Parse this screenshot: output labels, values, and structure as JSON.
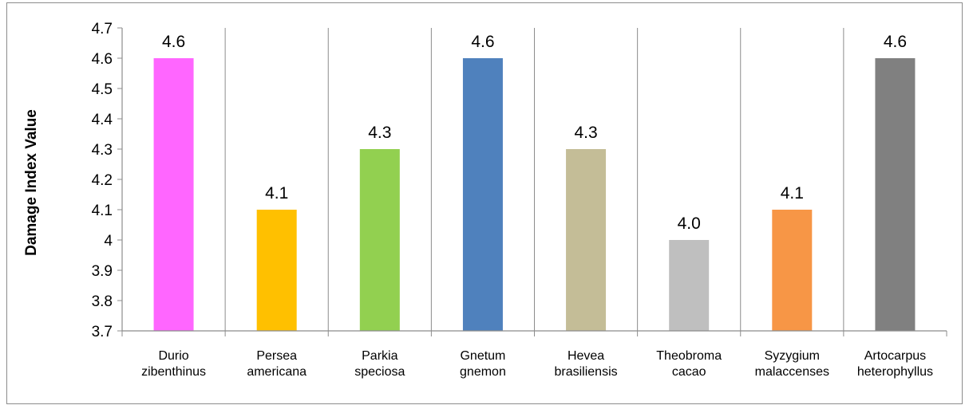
{
  "chart_data": {
    "type": "bar",
    "title": "",
    "xlabel": "",
    "ylabel": "Damage Index Value",
    "ylim": [
      3.7,
      4.7
    ],
    "yticks": [
      "3.7",
      "3.8",
      "3.9",
      "4",
      "4.1",
      "4.2",
      "4.3",
      "4.4",
      "4.5",
      "4.6",
      "4.7"
    ],
    "grid": "vertical separators between categories",
    "legend": "none",
    "categories": [
      [
        "Durio",
        "zibenthinus"
      ],
      [
        "Persea",
        "americana"
      ],
      [
        "Parkia",
        "speciosa"
      ],
      [
        "Gnetum",
        "gnemon"
      ],
      [
        "Hevea",
        "brasiliensis"
      ],
      [
        "Theobroma",
        "cacao"
      ],
      [
        "Syzygium",
        "malaccenses"
      ],
      [
        "Artocarpus",
        "heterophyllus"
      ]
    ],
    "values": [
      4.6,
      4.1,
      4.3,
      4.6,
      4.3,
      4.0,
      4.1,
      4.6
    ],
    "data_labels": [
      "4.6",
      "4.1",
      "4.3",
      "4.6",
      "4.3",
      "4.0",
      "4.1",
      "4.6"
    ],
    "colors": [
      "#ff66ff",
      "#ffc000",
      "#92d050",
      "#4f81bd",
      "#c4bd97",
      "#bfbfbf",
      "#f79646",
      "#808080"
    ]
  }
}
